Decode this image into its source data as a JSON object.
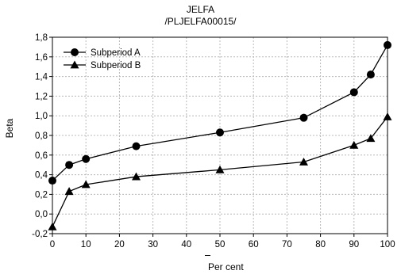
{
  "chart_data": {
    "type": "line",
    "title": "JELFA",
    "subtitle": "/PLJELFA00015/",
    "xlabel": "Per cent",
    "ylabel": "Beta",
    "xlim": [
      0,
      100
    ],
    "ylim": [
      -0.2,
      1.8
    ],
    "xticks": [
      0,
      10,
      20,
      30,
      40,
      50,
      60,
      70,
      80,
      90,
      100
    ],
    "yticks": [
      "-0,2",
      "0,0",
      "0,2",
      "0,4",
      "0,6",
      "0,8",
      "1,0",
      "1,2",
      "1,4",
      "1,6",
      "1,8"
    ],
    "grid": true,
    "legend_position": "top-left",
    "series": [
      {
        "name": "Subperiod A",
        "marker": "circle",
        "color": "#000000",
        "x": [
          0,
          5,
          10,
          25,
          50,
          75,
          90,
          95,
          100
        ],
        "y": [
          0.34,
          0.5,
          0.56,
          0.69,
          0.83,
          0.98,
          1.24,
          1.42,
          1.72
        ]
      },
      {
        "name": "Subperiod B",
        "marker": "triangle",
        "color": "#000000",
        "x": [
          0,
          5,
          10,
          25,
          50,
          75,
          90,
          95,
          100
        ],
        "y": [
          -0.13,
          0.23,
          0.3,
          0.38,
          0.45,
          0.53,
          0.7,
          0.77,
          0.99
        ]
      }
    ]
  }
}
